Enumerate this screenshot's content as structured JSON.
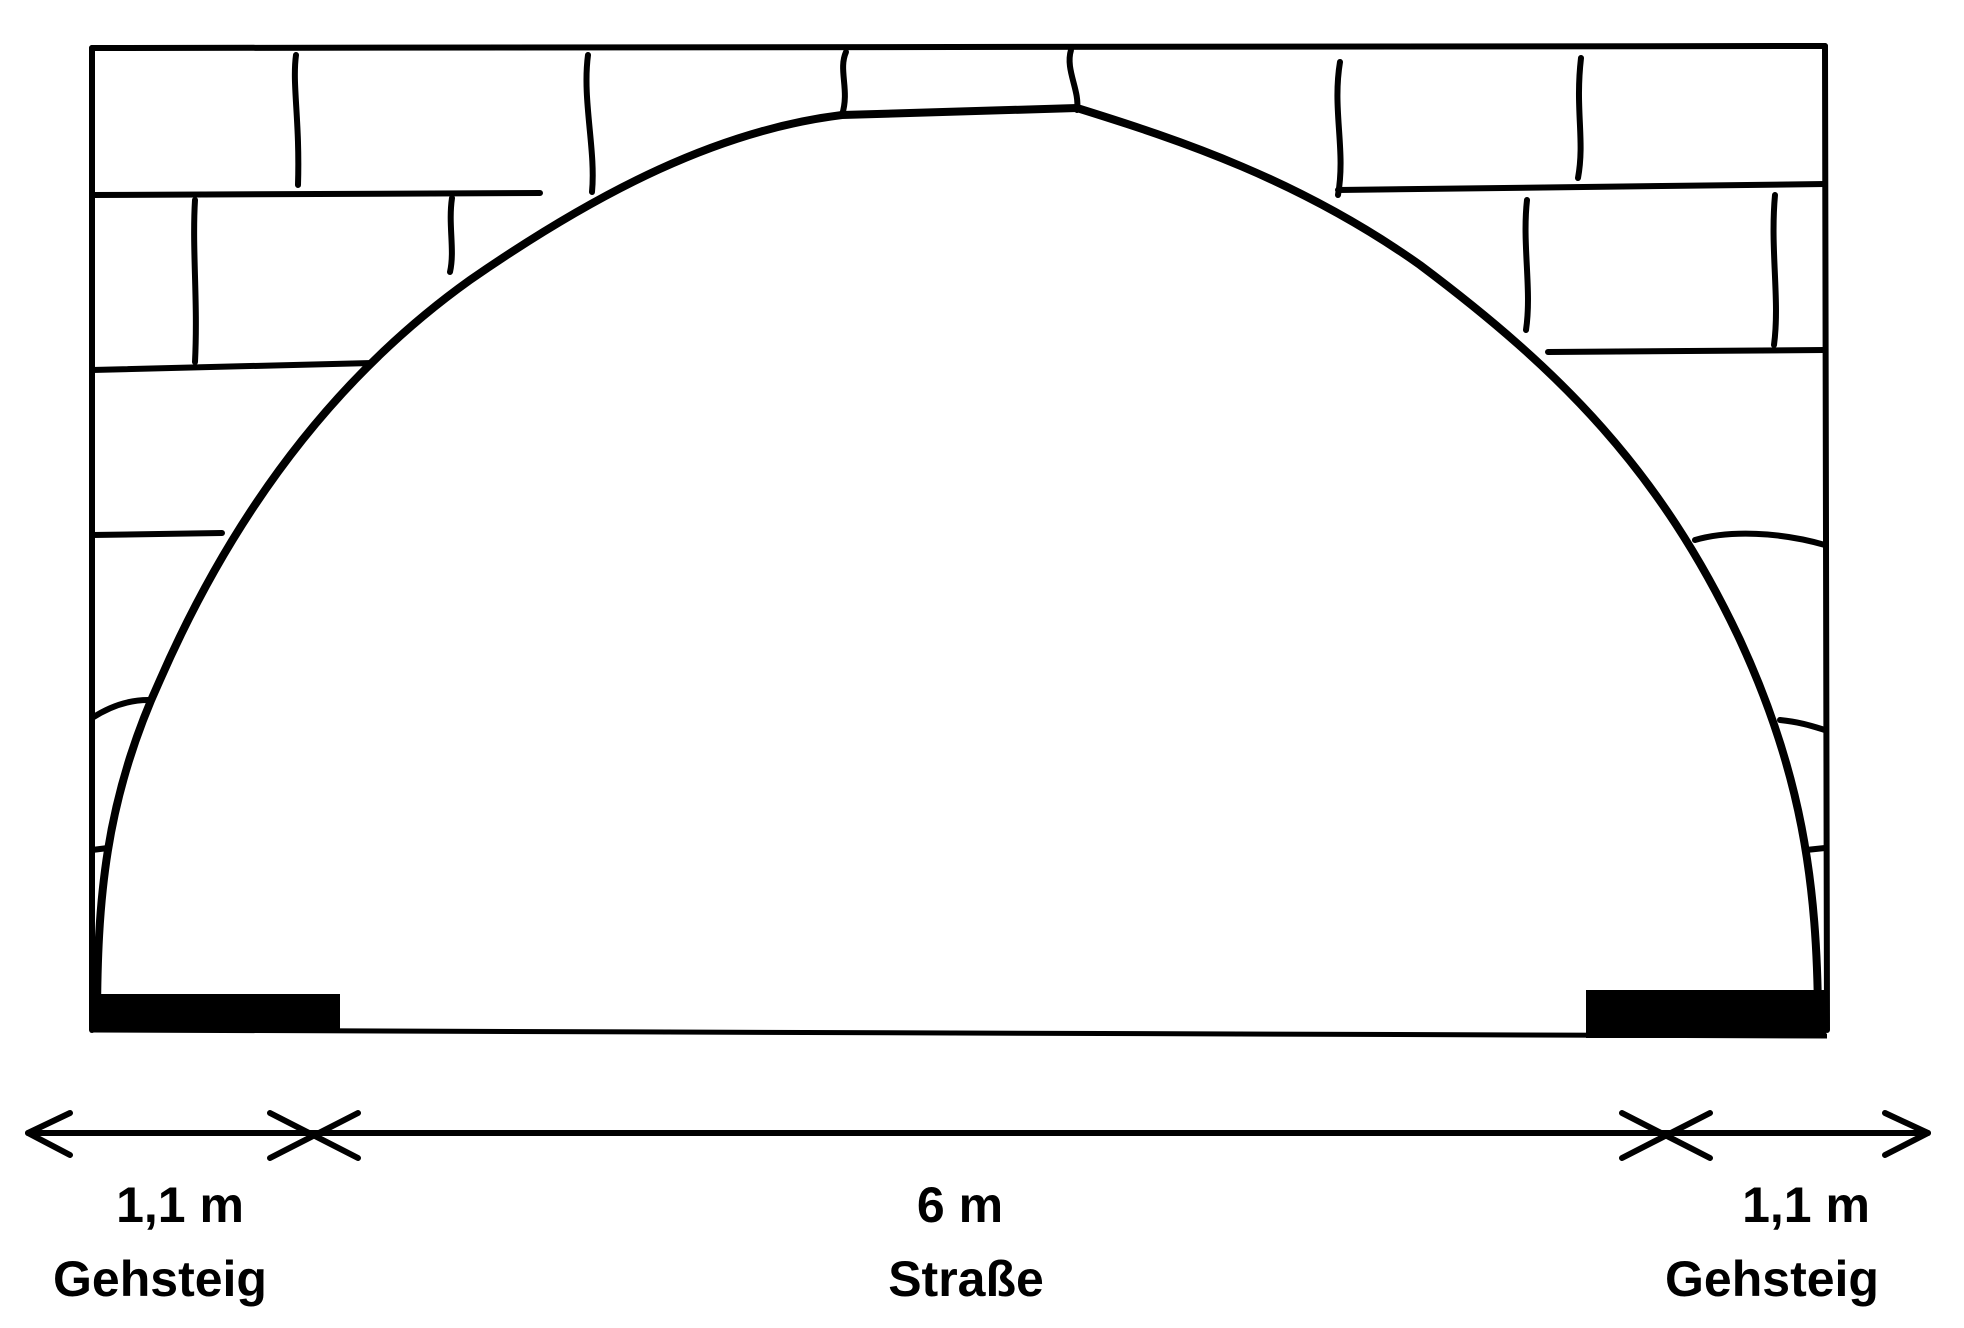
{
  "labels": {
    "left": {
      "width": "1,1 m",
      "name": "Gehsteig"
    },
    "center": {
      "width": "6 m",
      "name": "Straße"
    },
    "right": {
      "width": "1,1 m",
      "name": "Gehsteig"
    }
  },
  "colors": {
    "ink": "#000000",
    "background": "#ffffff"
  }
}
